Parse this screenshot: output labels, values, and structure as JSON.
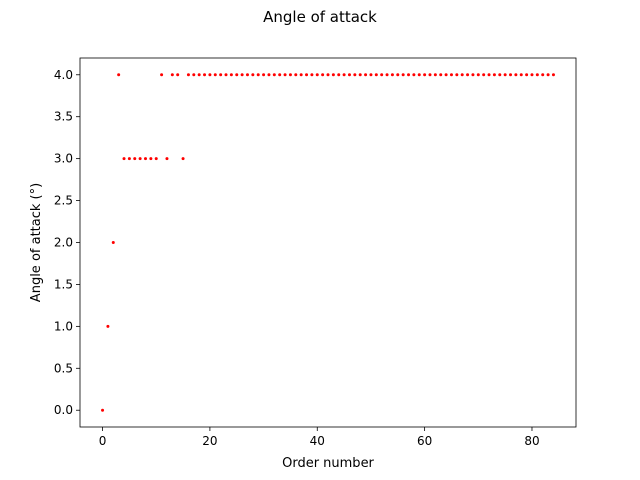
{
  "chart_data": {
    "type": "scatter",
    "title": "Angle of attack",
    "xlabel": "Order number",
    "ylabel": "Angle of attack (°)",
    "xlim": [
      -4.2,
      88.2
    ],
    "ylim": [
      -0.2,
      4.2
    ],
    "xticks": [
      {
        "value": 0,
        "label": "0"
      },
      {
        "value": 20,
        "label": "20"
      },
      {
        "value": 40,
        "label": "40"
      },
      {
        "value": 60,
        "label": "60"
      },
      {
        "value": 80,
        "label": "80"
      }
    ],
    "yticks": [
      {
        "value": 0.0,
        "label": "0.0"
      },
      {
        "value": 0.5,
        "label": "0.5"
      },
      {
        "value": 1.0,
        "label": "1.0"
      },
      {
        "value": 1.5,
        "label": "1.5"
      },
      {
        "value": 2.0,
        "label": "2.0"
      },
      {
        "value": 2.5,
        "label": "2.5"
      },
      {
        "value": 3.0,
        "label": "3.0"
      },
      {
        "value": 3.5,
        "label": "3.5"
      },
      {
        "value": 4.0,
        "label": "4.0"
      }
    ],
    "grid": false,
    "point_color": "#ff0000",
    "series": [
      {
        "x": [
          0,
          1,
          2,
          3,
          4,
          5,
          6,
          7,
          8,
          9,
          10,
          11,
          12,
          13,
          14,
          15,
          16,
          17,
          18,
          19,
          20,
          21,
          22,
          23,
          24,
          25,
          26,
          27,
          28,
          29,
          30,
          31,
          32,
          33,
          34,
          35,
          36,
          37,
          38,
          39,
          40,
          41,
          42,
          43,
          44,
          45,
          46,
          47,
          48,
          49,
          50,
          51,
          52,
          53,
          54,
          55,
          56,
          57,
          58,
          59,
          60,
          61,
          62,
          63,
          64,
          65,
          66,
          67,
          68,
          69,
          70,
          71,
          72,
          73,
          74,
          75,
          76,
          77,
          78,
          79,
          80,
          81,
          82,
          83,
          84
        ],
        "y": [
          0,
          1,
          2,
          4,
          3,
          3,
          3,
          3,
          3,
          3,
          3,
          4,
          3,
          4,
          4,
          3,
          4,
          4,
          4,
          4,
          4,
          4,
          4,
          4,
          4,
          4,
          4,
          4,
          4,
          4,
          4,
          4,
          4,
          4,
          4,
          4,
          4,
          4,
          4,
          4,
          4,
          4,
          4,
          4,
          4,
          4,
          4,
          4,
          4,
          4,
          4,
          4,
          4,
          4,
          4,
          4,
          4,
          4,
          4,
          4,
          4,
          4,
          4,
          4,
          4,
          4,
          4,
          4,
          4,
          4,
          4,
          4,
          4,
          4,
          4,
          4,
          4,
          4,
          4,
          4,
          4,
          4,
          4,
          4,
          4
        ]
      }
    ]
  }
}
